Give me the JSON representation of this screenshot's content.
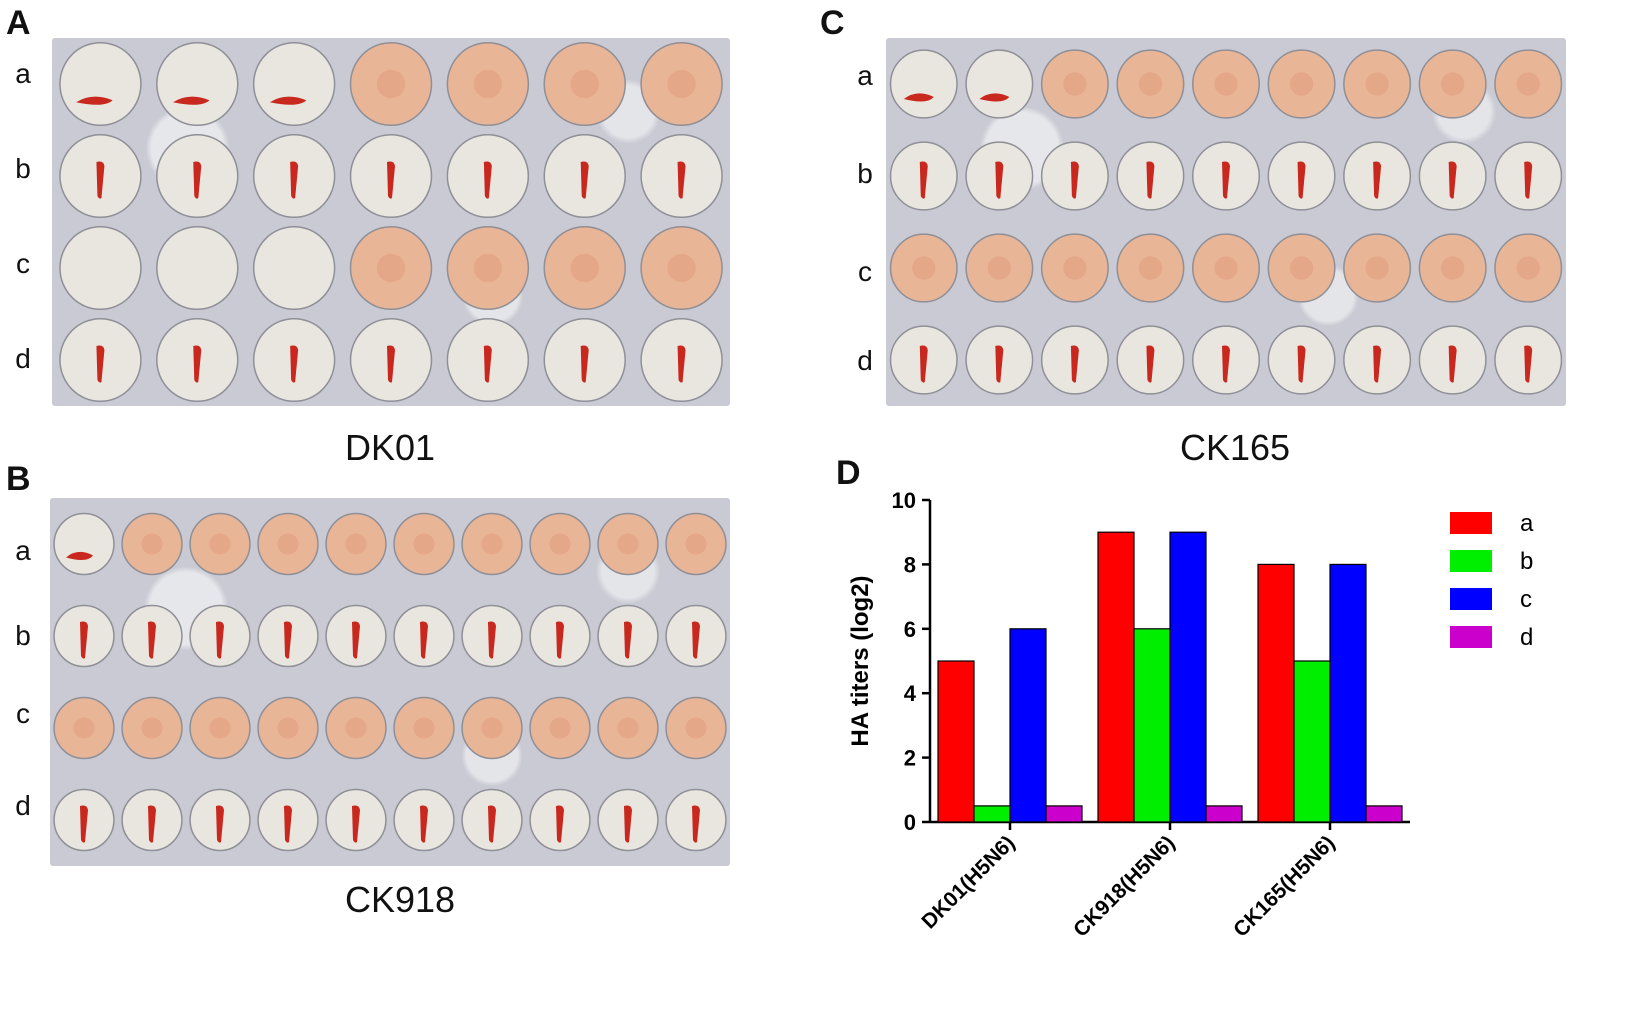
{
  "panels": {
    "A": {
      "letter": "A",
      "caption": "DK01",
      "rows": [
        "a",
        "b",
        "c",
        "d"
      ]
    },
    "B": {
      "letter": "B",
      "caption": "CK918",
      "rows": [
        "a",
        "b",
        "c",
        "d"
      ]
    },
    "C": {
      "letter": "C",
      "caption": "CK165",
      "rows": [
        "a",
        "b",
        "c",
        "d"
      ]
    },
    "D": {
      "letter": "D"
    }
  },
  "chart_data": {
    "type": "bar",
    "ylabel": "HA titers (log2)",
    "xlabel": "",
    "ylim": [
      0,
      10
    ],
    "yticks": [
      0,
      2,
      4,
      6,
      8,
      10
    ],
    "categories": [
      "DK01(H5N6)",
      "CK918(H5N6)",
      "CK165(H5N6)"
    ],
    "series": [
      {
        "name": "a",
        "color": "#ff0000",
        "values": [
          5,
          9,
          8
        ]
      },
      {
        "name": "b",
        "color": "#00ee00",
        "values": [
          0.5,
          6,
          5
        ]
      },
      {
        "name": "c",
        "color": "#0000ff",
        "values": [
          6,
          9,
          8
        ]
      },
      {
        "name": "d",
        "color": "#cc00cc",
        "values": [
          0.5,
          0.5,
          0.5
        ]
      }
    ],
    "legend": "right"
  }
}
